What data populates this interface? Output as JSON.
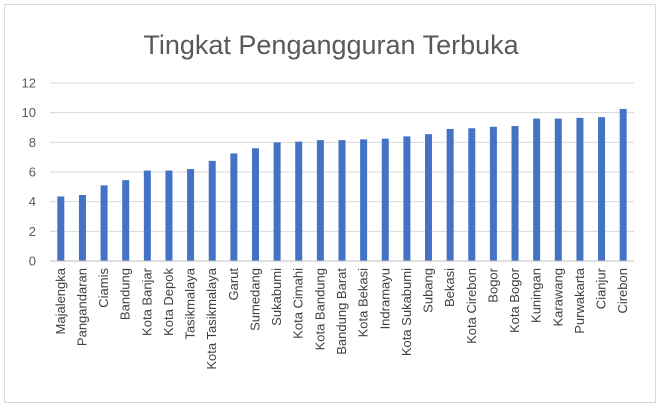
{
  "chart_data": {
    "type": "bar",
    "title": "Tingkat Pengangguran Terbuka",
    "xlabel": "",
    "ylabel": "",
    "ylim": [
      0,
      12
    ],
    "yticks": [
      0,
      2,
      4,
      6,
      8,
      10,
      12
    ],
    "grid": true,
    "legend": "none",
    "bar_color": "#4472c4",
    "categories": [
      "Majalengka",
      "Pangandaran",
      "Ciamis",
      "Bandung",
      "Kota Banjar",
      "Kota Depok",
      "Tasikmalaya",
      "Kota Tasikmalaya",
      "Garut",
      "Sumedang",
      "Sukabumi",
      "Kota Cimahi",
      "Kota Bandung",
      "Bandung Barat",
      "Kota Bekasi",
      "Indramayu",
      "Kota Sukabumi",
      "Subang",
      "Bekasi",
      "Kota Cirebon",
      "Bogor",
      "Kota Bogor",
      "Kuningan",
      "Karawang",
      "Purwakarta",
      "Cianjur",
      "Cirebon"
    ],
    "values": [
      4.35,
      4.45,
      5.1,
      5.45,
      6.1,
      6.1,
      6.2,
      6.75,
      7.25,
      7.6,
      8.0,
      8.05,
      8.15,
      8.15,
      8.2,
      8.25,
      8.4,
      8.55,
      8.9,
      8.95,
      9.05,
      9.1,
      9.6,
      9.6,
      9.65,
      9.7,
      10.25
    ]
  }
}
